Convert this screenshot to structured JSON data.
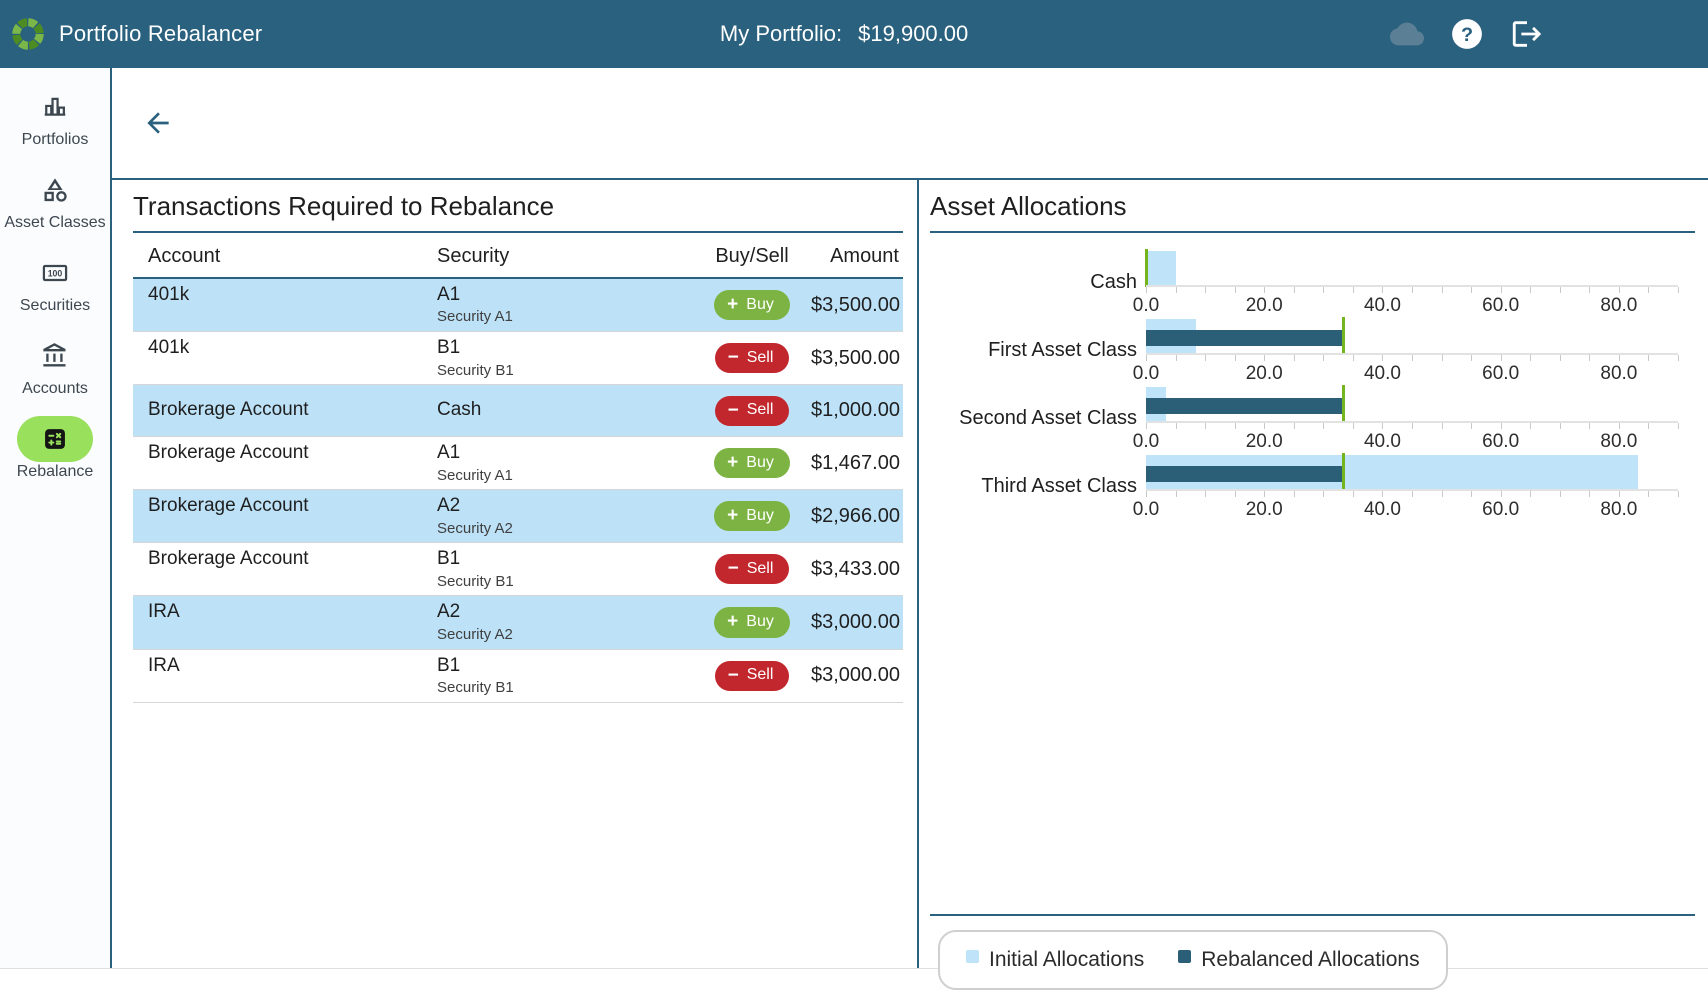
{
  "header": {
    "app_title": "Portfolio Rebalancer",
    "portfolio_label": "My Portfolio:",
    "portfolio_value": "$19,900.00"
  },
  "sidebar": {
    "items": [
      {
        "label": "Portfolios",
        "icon": "bar-chart-icon",
        "active": false
      },
      {
        "label": "Asset Classes",
        "icon": "category-shapes-icon",
        "active": false
      },
      {
        "label": "Securities",
        "icon": "banknote-icon",
        "active": false
      },
      {
        "label": "Accounts",
        "icon": "bank-icon",
        "active": false
      },
      {
        "label": "Rebalance",
        "icon": "calculator-icon",
        "active": true
      }
    ]
  },
  "transactions": {
    "title": "Transactions Required to Rebalance",
    "columns": [
      "Account",
      "Security",
      "Buy/Sell",
      "Amount"
    ],
    "rows": [
      {
        "account": "401k",
        "security": "A1",
        "security_sub": "Security A1",
        "action": "Buy",
        "amount": "$3,500.00"
      },
      {
        "account": "401k",
        "security": "B1",
        "security_sub": "Security B1",
        "action": "Sell",
        "amount": "$3,500.00"
      },
      {
        "account": "Brokerage Account",
        "security": "Cash",
        "security_sub": "",
        "action": "Sell",
        "amount": "$1,000.00"
      },
      {
        "account": "Brokerage Account",
        "security": "A1",
        "security_sub": "Security A1",
        "action": "Buy",
        "amount": "$1,467.00"
      },
      {
        "account": "Brokerage Account",
        "security": "A2",
        "security_sub": "Security A2",
        "action": "Buy",
        "amount": "$2,966.00"
      },
      {
        "account": "Brokerage Account",
        "security": "B1",
        "security_sub": "Security B1",
        "action": "Sell",
        "amount": "$3,433.00"
      },
      {
        "account": "IRA",
        "security": "A2",
        "security_sub": "Security A2",
        "action": "Buy",
        "amount": "$3,000.00"
      },
      {
        "account": "IRA",
        "security": "B1",
        "security_sub": "Security B1",
        "action": "Sell",
        "amount": "$3,000.00"
      }
    ]
  },
  "allocations": {
    "title": "Asset Allocations",
    "legend": [
      {
        "label": "Initial Allocations",
        "color": "#bfe3f8"
      },
      {
        "label": "Rebalanced Allocations",
        "color": "#2b5f78"
      }
    ]
  },
  "chart_data": {
    "type": "bar",
    "orientation": "horizontal",
    "title": "Asset Allocations",
    "categories": [
      "Cash",
      "First Asset Class",
      "Second Asset Class",
      "Third Asset Class"
    ],
    "series": [
      {
        "name": "Initial Allocations",
        "color": "#bfe3f8",
        "values": [
          5.0,
          8.4,
          3.4,
          83.2
        ]
      },
      {
        "name": "Rebalanced Allocations",
        "color": "#2b5f78",
        "values": [
          0.0,
          33.3,
          33.3,
          33.3
        ]
      }
    ],
    "target_markers": {
      "color": "#73b41f",
      "values": [
        0.0,
        33.3,
        33.3,
        33.3
      ]
    },
    "xlim": [
      0,
      90
    ],
    "x_tick_step": 5,
    "x_label_step": 20,
    "x_tick_labels": [
      "0.0",
      "20.0",
      "40.0",
      "60.0",
      "80.0"
    ],
    "grid": false,
    "legend_position": "bottom"
  },
  "colors": {
    "header_bg": "#2a617e",
    "accent_teal": "#2a617e",
    "row_highlight": "#bde2f8",
    "buy_green": "#7cb342",
    "sell_red": "#c1272d",
    "active_nav_green": "#99e05c",
    "target_marker_green": "#73b41f"
  }
}
